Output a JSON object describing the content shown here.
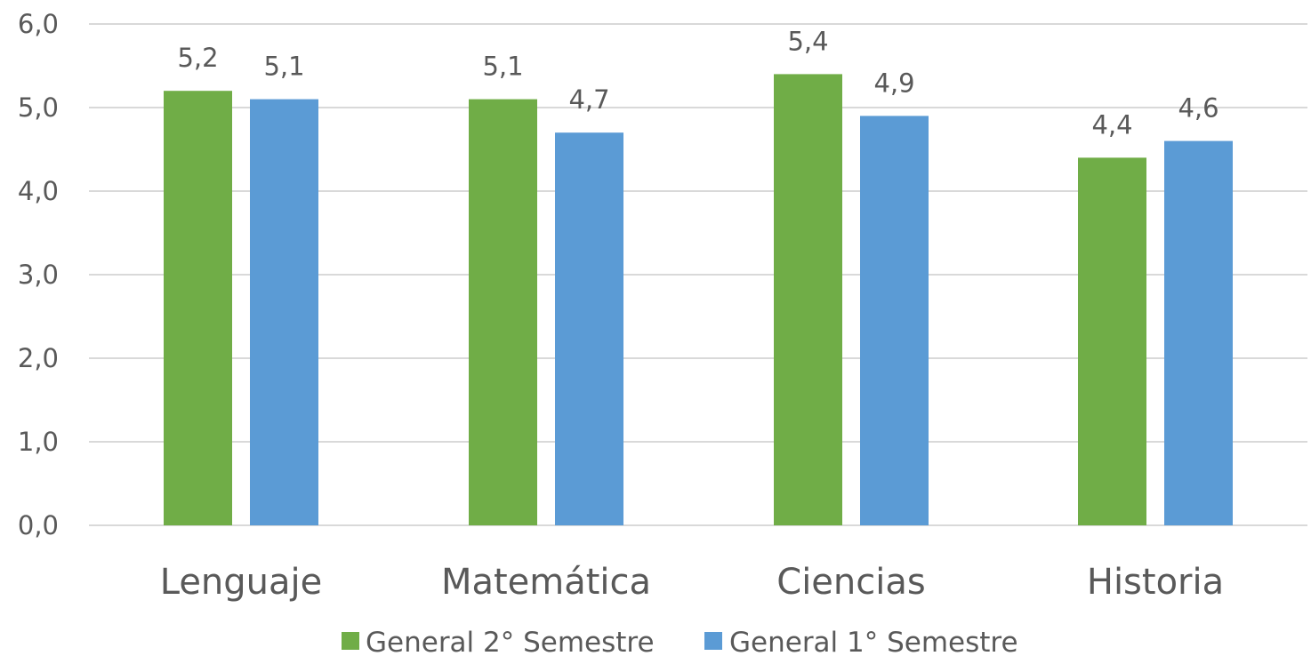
{
  "chart_data": {
    "type": "bar",
    "title": "",
    "xlabel": "",
    "ylabel": "",
    "categories": [
      "Lenguaje",
      "Matemática",
      "Ciencias",
      "Historia"
    ],
    "series": [
      {
        "name": "General 2° Semestre",
        "values": [
          5.2,
          5.1,
          5.4,
          4.4
        ],
        "data_labels": [
          "5,2",
          "5,1",
          "5,4",
          "4,4"
        ],
        "color": "#70AD47"
      },
      {
        "name": "General 1° Semestre",
        "values": [
          5.1,
          4.7,
          4.9,
          4.6
        ],
        "data_labels": [
          "5,1",
          "4,7",
          "4,9",
          "4,6"
        ],
        "color": "#5B9BD5"
      }
    ],
    "ylim": [
      0,
      6
    ],
    "yticks": [
      0,
      1,
      2,
      3,
      4,
      5,
      6
    ],
    "ytick_labels": [
      "0,0",
      "1,0",
      "2,0",
      "3,0",
      "4,0",
      "5,0",
      "6,0"
    ],
    "grid": true,
    "gridline_color": "#D9D9D9",
    "legend_position": "bottom",
    "text_color": "#595959"
  }
}
